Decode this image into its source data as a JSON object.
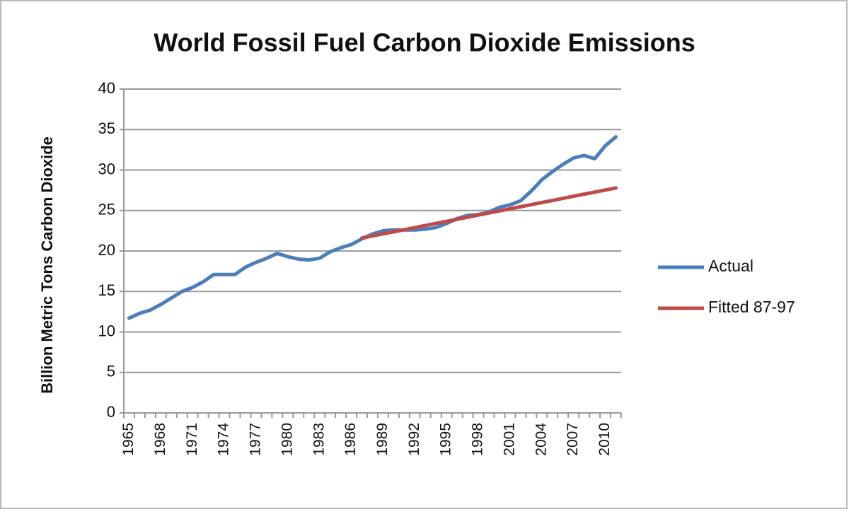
{
  "chart_data": {
    "type": "line",
    "title": "World Fossil Fuel Carbon Dioxide Emissions",
    "y_label": "Billion Metric Tons Carbon Dioxide",
    "categories": [
      "1965",
      null,
      null,
      "1968",
      null,
      null,
      "1971",
      null,
      null,
      "1974",
      null,
      null,
      "1977",
      null,
      null,
      "1980",
      null,
      null,
      "1983",
      null,
      null,
      "1986",
      null,
      null,
      "1989",
      null,
      null,
      "1992",
      null,
      null,
      "1995",
      null,
      null,
      "1998",
      null,
      null,
      "2001",
      null,
      null,
      "2004",
      null,
      null,
      "2007",
      null,
      null,
      "2010",
      null
    ],
    "series": [
      {
        "name": "Actual",
        "color": "#4a7ebb",
        "values": [
          11.7,
          12.3,
          12.7,
          13.4,
          14.2,
          15.0,
          15.5,
          16.2,
          17.1,
          17.1,
          17.1,
          18.0,
          18.6,
          19.1,
          19.7,
          19.3,
          19.0,
          18.9,
          19.1,
          19.9,
          20.4,
          20.8,
          21.5,
          22.1,
          22.5,
          22.6,
          22.6,
          22.6,
          22.7,
          22.9,
          23.4,
          24.0,
          24.4,
          24.5,
          24.8,
          25.4,
          25.7,
          26.2,
          27.4,
          28.8,
          29.8,
          30.7,
          31.5,
          31.8,
          31.4,
          33.0,
          34.1
        ]
      },
      {
        "name": "Fitted 87-97",
        "color": "#be4b48",
        "values": [
          null,
          null,
          null,
          null,
          null,
          null,
          null,
          null,
          null,
          null,
          null,
          null,
          null,
          null,
          null,
          null,
          null,
          null,
          null,
          null,
          null,
          null,
          21.6,
          21.86,
          22.12,
          22.37,
          22.63,
          22.89,
          23.15,
          23.41,
          23.66,
          23.92,
          24.18,
          24.44,
          24.7,
          24.95,
          25.21,
          25.47,
          25.73,
          25.99,
          26.24,
          26.5,
          26.76,
          27.02,
          27.28,
          27.53,
          27.79
        ]
      }
    ],
    "ylim": [
      0,
      40
    ],
    "yticks": [
      0,
      5,
      10,
      15,
      20,
      25,
      30,
      35,
      40
    ],
    "grid": true,
    "legend": "right"
  }
}
